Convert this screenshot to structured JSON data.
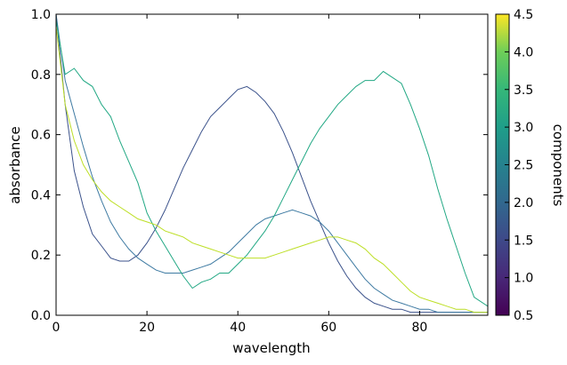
{
  "chart_data": {
    "type": "line",
    "xlabel": "wavelength",
    "ylabel": "absorbance",
    "xlim": [
      0,
      95
    ],
    "ylim": [
      0,
      1.0
    ],
    "xticks": [
      "0",
      "20",
      "40",
      "60",
      "80"
    ],
    "xtick_values": [
      0,
      20,
      40,
      60,
      80
    ],
    "yticks": [
      "0.0",
      "0.2",
      "0.4",
      "0.6",
      "0.8",
      "1.0"
    ],
    "ytick_values": [
      0,
      0.2,
      0.4,
      0.6,
      0.8,
      1.0
    ],
    "grid": false,
    "colorbar": {
      "label": "components",
      "range": [
        0.5,
        4.5
      ],
      "colormap": "viridis",
      "ticks": [
        "0.5",
        "1.0",
        "1.5",
        "2.0",
        "2.5",
        "3.0",
        "3.5",
        "4.0",
        "4.5"
      ],
      "tick_values": [
        0.5,
        1.0,
        1.5,
        2.0,
        2.5,
        3.0,
        3.5,
        4.0,
        4.5
      ]
    },
    "series": [
      {
        "color": "#3b528b",
        "x": [
          0,
          2,
          4,
          6,
          8,
          10,
          12,
          14,
          16,
          18,
          20,
          22,
          24,
          26,
          28,
          30,
          32,
          34,
          36,
          38,
          40,
          42,
          44,
          46,
          48,
          50,
          52,
          54,
          56,
          58,
          60,
          62,
          64,
          66,
          68,
          70,
          72,
          74,
          76,
          78,
          80,
          82,
          84,
          86,
          88,
          90,
          92,
          95
        ],
        "y": [
          1.0,
          0.7,
          0.48,
          0.36,
          0.27,
          0.23,
          0.19,
          0.18,
          0.18,
          0.2,
          0.24,
          0.29,
          0.35,
          0.42,
          0.49,
          0.55,
          0.61,
          0.66,
          0.69,
          0.72,
          0.75,
          0.76,
          0.74,
          0.71,
          0.67,
          0.61,
          0.54,
          0.46,
          0.38,
          0.31,
          0.24,
          0.18,
          0.13,
          0.09,
          0.06,
          0.04,
          0.03,
          0.02,
          0.02,
          0.01,
          0.01,
          0.01,
          0.01,
          0.01,
          0.01,
          0.01,
          0.01,
          0.01
        ]
      },
      {
        "color": "#3e7aa2",
        "x": [
          0,
          2,
          4,
          6,
          8,
          10,
          12,
          14,
          16,
          18,
          20,
          22,
          24,
          26,
          28,
          30,
          32,
          34,
          36,
          38,
          40,
          42,
          44,
          46,
          48,
          50,
          52,
          54,
          56,
          58,
          60,
          62,
          64,
          66,
          68,
          70,
          72,
          74,
          76,
          78,
          80,
          82,
          84,
          86,
          88,
          90,
          92,
          95
        ],
        "y": [
          1.0,
          0.78,
          0.67,
          0.56,
          0.46,
          0.38,
          0.31,
          0.26,
          0.22,
          0.19,
          0.17,
          0.15,
          0.14,
          0.14,
          0.14,
          0.15,
          0.16,
          0.17,
          0.19,
          0.21,
          0.24,
          0.27,
          0.3,
          0.32,
          0.33,
          0.34,
          0.35,
          0.34,
          0.33,
          0.31,
          0.28,
          0.24,
          0.2,
          0.16,
          0.12,
          0.09,
          0.07,
          0.05,
          0.04,
          0.03,
          0.02,
          0.02,
          0.01,
          0.01,
          0.01,
          0.01,
          0.01,
          0.01
        ]
      },
      {
        "color": "#22a884",
        "x": [
          0,
          2,
          4,
          6,
          8,
          10,
          12,
          14,
          16,
          18,
          20,
          22,
          24,
          26,
          28,
          30,
          32,
          34,
          36,
          38,
          40,
          42,
          44,
          46,
          48,
          50,
          52,
          54,
          56,
          58,
          60,
          62,
          64,
          66,
          68,
          70,
          72,
          74,
          76,
          78,
          80,
          82,
          84,
          86,
          88,
          90,
          92,
          95
        ],
        "y": [
          0.98,
          0.8,
          0.82,
          0.78,
          0.76,
          0.7,
          0.66,
          0.58,
          0.51,
          0.44,
          0.34,
          0.28,
          0.23,
          0.18,
          0.13,
          0.09,
          0.11,
          0.12,
          0.14,
          0.14,
          0.17,
          0.2,
          0.24,
          0.28,
          0.33,
          0.39,
          0.45,
          0.51,
          0.57,
          0.62,
          0.66,
          0.7,
          0.73,
          0.76,
          0.78,
          0.78,
          0.81,
          0.79,
          0.77,
          0.7,
          0.62,
          0.53,
          0.42,
          0.32,
          0.23,
          0.14,
          0.06,
          0.03
        ]
      },
      {
        "color": "#bddf26",
        "x": [
          0,
          2,
          4,
          6,
          8,
          10,
          12,
          14,
          16,
          18,
          20,
          22,
          24,
          26,
          28,
          30,
          32,
          34,
          36,
          38,
          40,
          42,
          44,
          46,
          48,
          50,
          52,
          54,
          56,
          58,
          60,
          62,
          64,
          66,
          68,
          70,
          72,
          74,
          76,
          78,
          80,
          82,
          84,
          86,
          88,
          90,
          92,
          95
        ],
        "y": [
          0.96,
          0.7,
          0.58,
          0.5,
          0.45,
          0.41,
          0.38,
          0.36,
          0.34,
          0.32,
          0.31,
          0.3,
          0.28,
          0.27,
          0.26,
          0.24,
          0.23,
          0.22,
          0.21,
          0.2,
          0.19,
          0.19,
          0.19,
          0.19,
          0.2,
          0.21,
          0.22,
          0.23,
          0.24,
          0.25,
          0.26,
          0.26,
          0.25,
          0.24,
          0.22,
          0.19,
          0.17,
          0.14,
          0.11,
          0.08,
          0.06,
          0.05,
          0.04,
          0.03,
          0.02,
          0.02,
          0.01,
          0.01
        ]
      }
    ]
  }
}
